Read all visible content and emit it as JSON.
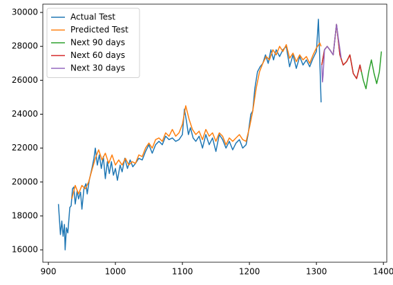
{
  "chart_data": {
    "type": "line",
    "xlim": [
      891.7,
      1405
    ],
    "xticks": [
      900,
      1000,
      1100,
      1200,
      1300,
      1400
    ],
    "ylim": [
      15270,
      30490
    ],
    "yticks": [
      16000,
      18000,
      20000,
      22000,
      24000,
      26000,
      28000,
      30000
    ],
    "legend": "upper left",
    "series": [
      {
        "name": "Actual Test",
        "color": "#1f77b4",
        "x": [
          915,
          918,
          920,
          922,
          924,
          925,
          927,
          929,
          932,
          934,
          936,
          938,
          940,
          943,
          945,
          948,
          950,
          953,
          956,
          958,
          961,
          965,
          968,
          970,
          973,
          976,
          979,
          982,
          985,
          988,
          991,
          994,
          997,
          1000,
          1003,
          1007,
          1010,
          1014,
          1018,
          1022,
          1026,
          1030,
          1035,
          1040,
          1045,
          1050,
          1055,
          1060,
          1065,
          1070,
          1075,
          1080,
          1085,
          1090,
          1095,
          1100,
          1103,
          1106,
          1109,
          1112,
          1116,
          1120,
          1125,
          1130,
          1135,
          1140,
          1145,
          1150,
          1155,
          1160,
          1165,
          1170,
          1175,
          1180,
          1185,
          1190,
          1195,
          1198,
          1202,
          1205,
          1208,
          1212,
          1216,
          1220,
          1224,
          1228,
          1232,
          1236,
          1240,
          1245,
          1250,
          1255,
          1260,
          1265,
          1270,
          1275,
          1280,
          1285,
          1290,
          1295,
          1300,
          1303,
          1305,
          1307
        ],
        "values": [
          18700,
          16900,
          17700,
          16800,
          17500,
          16000,
          17300,
          17000,
          18500,
          18600,
          19600,
          19700,
          18700,
          19500,
          19000,
          19400,
          18400,
          19600,
          19900,
          19300,
          20100,
          20800,
          21400,
          22000,
          21000,
          21600,
          20800,
          21500,
          20200,
          21200,
          20500,
          21200,
          20400,
          20800,
          20100,
          21000,
          20600,
          21400,
          20800,
          21300,
          20900,
          21100,
          21400,
          21300,
          21800,
          22200,
          21700,
          22200,
          22400,
          22200,
          22700,
          22500,
          22600,
          22400,
          22500,
          22800,
          24300,
          23600,
          22800,
          23200,
          22600,
          22400,
          22700,
          22000,
          22800,
          22200,
          22600,
          21800,
          22800,
          22500,
          22000,
          22400,
          21900,
          22300,
          22500,
          22000,
          22200,
          22800,
          24000,
          24200,
          25500,
          26500,
          26800,
          27000,
          27500,
          27000,
          27800,
          27200,
          27800,
          27400,
          27800,
          28000,
          26800,
          27500,
          26700,
          27400,
          26900,
          27200,
          26800,
          27300,
          27700,
          29600,
          27200,
          24700
        ]
      },
      {
        "name": "Predicted Test",
        "color": "#ff7f0e",
        "x": [
          935,
          940,
          945,
          950,
          955,
          960,
          965,
          970,
          975,
          980,
          985,
          990,
          995,
          1000,
          1005,
          1010,
          1015,
          1020,
          1025,
          1030,
          1035,
          1040,
          1045,
          1050,
          1055,
          1060,
          1065,
          1070,
          1075,
          1080,
          1085,
          1090,
          1095,
          1100,
          1105,
          1110,
          1115,
          1120,
          1125,
          1130,
          1135,
          1140,
          1145,
          1150,
          1155,
          1160,
          1165,
          1170,
          1175,
          1180,
          1185,
          1190,
          1195,
          1200,
          1205,
          1210,
          1215,
          1220,
          1225,
          1230,
          1235,
          1240,
          1245,
          1250,
          1255,
          1260,
          1265,
          1270,
          1275,
          1280,
          1285,
          1290,
          1295,
          1300,
          1305,
          1307
        ],
        "values": [
          19000,
          19800,
          19300,
          19800,
          19600,
          20000,
          20700,
          21400,
          21900,
          21300,
          21700,
          21100,
          21600,
          21000,
          21300,
          21000,
          21400,
          21000,
          21200,
          21100,
          21600,
          21500,
          22000,
          22300,
          22000,
          22500,
          22600,
          22400,
          22900,
          22700,
          23100,
          22700,
          22900,
          23400,
          24500,
          23700,
          23100,
          22800,
          23000,
          22500,
          23100,
          22700,
          22900,
          22400,
          22900,
          22700,
          22200,
          22600,
          22400,
          22600,
          22800,
          22500,
          22400,
          23200,
          24200,
          25500,
          26500,
          27000,
          27400,
          27200,
          27800,
          27500,
          28000,
          27700,
          28100,
          27300,
          27600,
          27100,
          27500,
          27200,
          27400,
          27000,
          27500,
          27900,
          28200,
          28000
        ]
      },
      {
        "name": "Next 90 days",
        "color": "#2ca02c",
        "x": [
          1308,
          1312,
          1316,
          1320,
          1325,
          1330,
          1335,
          1340,
          1345,
          1350,
          1355,
          1360,
          1365,
          1370,
          1374,
          1378,
          1382,
          1386,
          1390,
          1394,
          1397
        ],
        "values": [
          26900,
          27800,
          28000,
          27800,
          27500,
          29300,
          27500,
          26900,
          27100,
          27500,
          26400,
          26100,
          26900,
          26000,
          25500,
          26500,
          27200,
          26400,
          25800,
          26500,
          27700
        ]
      },
      {
        "name": "Next 60 days",
        "color": "#d62728",
        "x": [
          1308,
          1312,
          1316,
          1320,
          1325,
          1330,
          1335,
          1340,
          1345,
          1350,
          1355,
          1360,
          1365,
          1367
        ],
        "values": [
          26900,
          27800,
          28000,
          27800,
          27500,
          29300,
          27500,
          26900,
          27100,
          27500,
          26400,
          26100,
          26900,
          26500
        ]
      },
      {
        "name": "Next 30 days",
        "color": "#9467bd",
        "x": [
          1308,
          1309,
          1310,
          1312,
          1316,
          1320,
          1325,
          1330,
          1333,
          1337
        ],
        "values": [
          26900,
          25900,
          26300,
          27800,
          28000,
          27800,
          27500,
          29300,
          28400,
          27300
        ]
      }
    ]
  }
}
